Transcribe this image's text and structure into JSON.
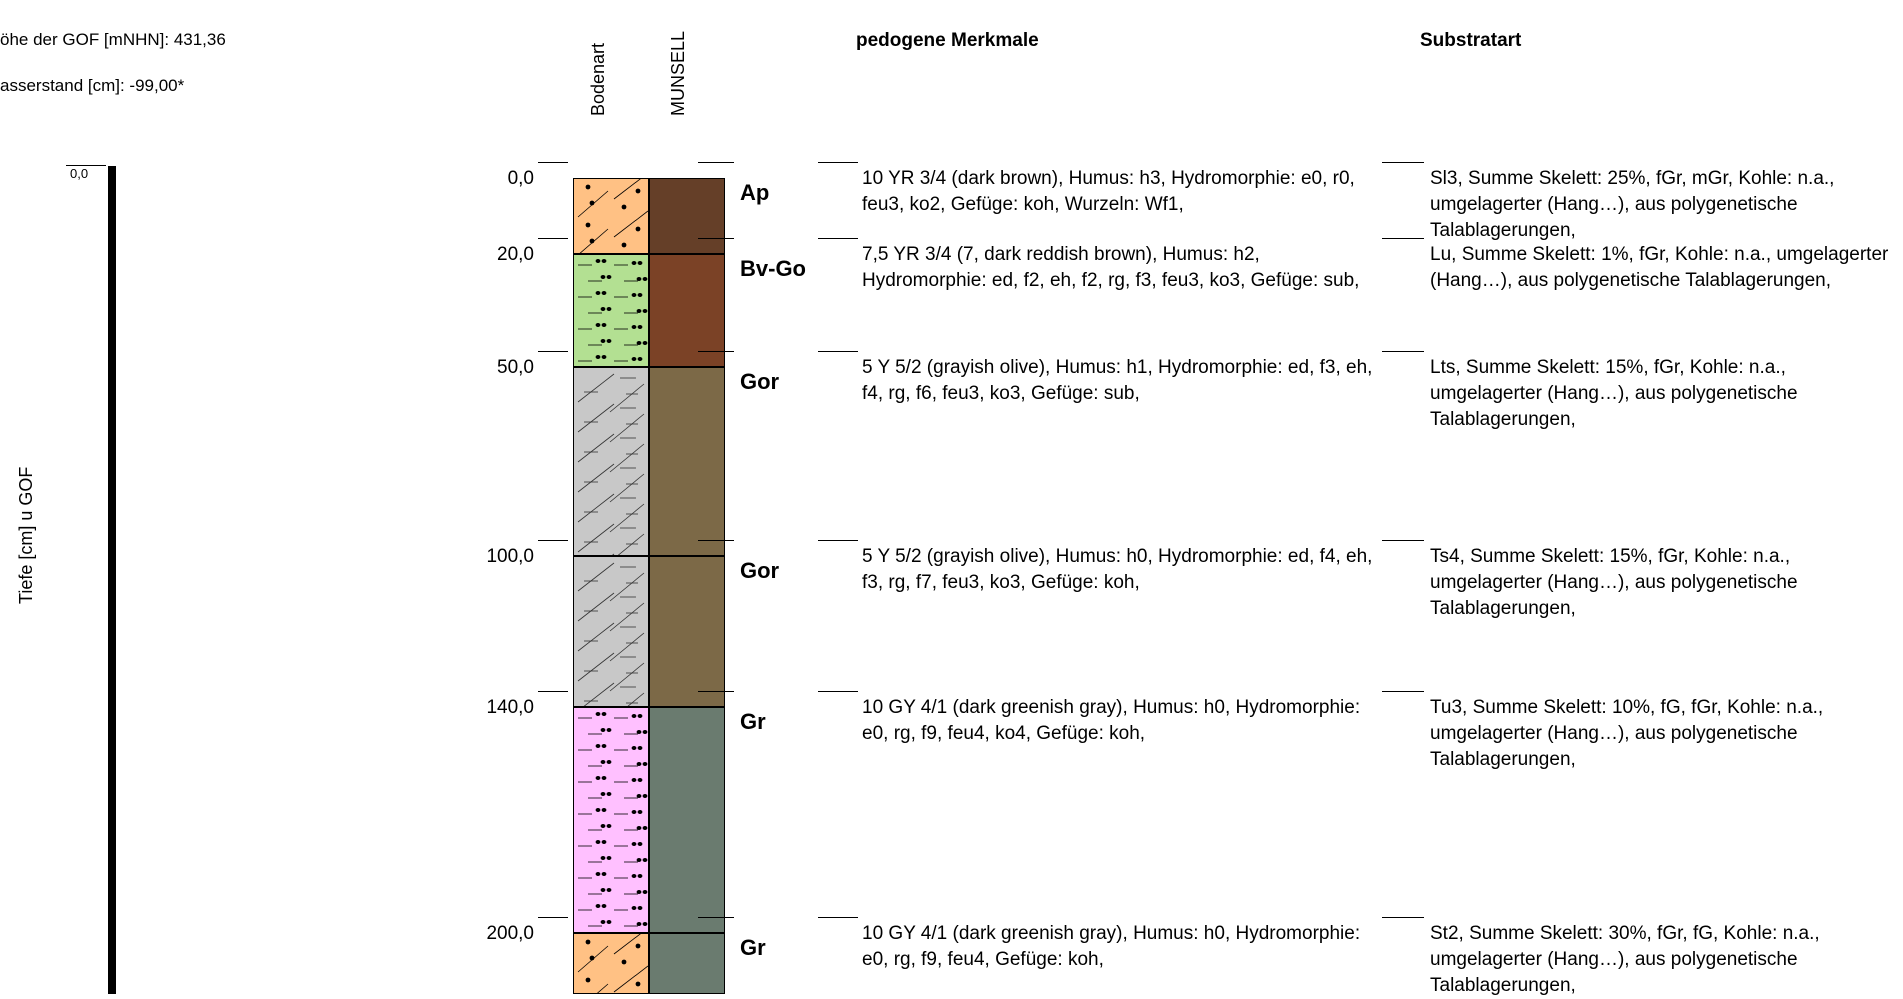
{
  "meta": {
    "gof_height": "öhe der GOF [mNHN]: 431,36",
    "water_level": "asserstand [cm]: -99,00*"
  },
  "axis": {
    "label": "Tiefe [cm] u GOF",
    "zero": "0,0"
  },
  "headers": {
    "bodenart": "Bodenart",
    "munsell": "MUNSELL",
    "pedogene": "pedogene Merkmale",
    "substratart": "Substratart"
  },
  "layers": [
    {
      "depth_label": "0,0",
      "top_cm": 0,
      "bottom_cm": 20,
      "horizon": "Ap",
      "pattern": "sand",
      "soil_color": "#ffc184",
      "munsell_color": "#653f28",
      "pedogenic": "10 YR 3/4 (dark brown), Humus: h3, Hydromorphie: e0, r0, feu3, ko2, Gefüge: koh, Wurzeln: Wf1,",
      "substrate": "Sl3, Summe Skelett: 25%, fGr, mGr, Kohle: n.a., umgelagerter (Hang…), aus polygenetische Talablagerungen,"
    },
    {
      "depth_label": "20,0",
      "top_cm": 20,
      "bottom_cm": 50,
      "horizon": "Bv-Go",
      "pattern": "loam",
      "soil_color": "#b3e092",
      "munsell_color": "#7b4226",
      "pedogenic": "7,5 YR 3/4 (7, dark reddish brown), Humus: h2, Hydromorphie: ed, f2, eh, f2, rg, f3, feu3, ko3, Gefüge: sub,",
      "substrate": "Lu, Summe Skelett: 1%, fGr, Kohle: n.a., umgelagerter (Hang…), aus polygenetische Talablagerungen,"
    },
    {
      "depth_label": "50,0",
      "top_cm": 50,
      "bottom_cm": 100,
      "horizon": "Gor",
      "pattern": "clay",
      "soil_color": "#c8c8c8",
      "munsell_color": "#7c6947",
      "pedogenic": "5 Y 5/2 (grayish olive), Humus: h1, Hydromorphie: ed, f3, eh, f4, rg, f6, feu3, ko3, Gefüge: sub,",
      "substrate": "Lts, Summe Skelett: 15%, fGr, Kohle: n.a., umgelagerter (Hang…), aus polygenetische Talablagerungen,"
    },
    {
      "depth_label": "100,0",
      "top_cm": 100,
      "bottom_cm": 140,
      "horizon": "Gor",
      "pattern": "clay",
      "soil_color": "#c8c8c8",
      "munsell_color": "#7c6947",
      "pedogenic": "5 Y 5/2 (grayish olive), Humus: h0, Hydromorphie: ed, f4, eh, f3, rg, f7, feu3, ko3, Gefüge: koh,",
      "substrate": "Ts4, Summe Skelett: 15%, fGr, Kohle: n.a., umgelagerter (Hang…), aus polygenetische Talablagerungen,"
    },
    {
      "depth_label": "140,0",
      "top_cm": 140,
      "bottom_cm": 200,
      "horizon": "Gr",
      "pattern": "silt",
      "soil_color": "#ffc0ff",
      "munsell_color": "#6a7b6f",
      "pedogenic": "10 GY 4/1 (dark greenish gray), Humus: h0, Hydromorphie: e0, rg, f9, feu4, ko4, Gefüge: koh,",
      "substrate": "Tu3, Summe Skelett: 10%, fG, fGr, Kohle: n.a., umgelagerter (Hang…), aus polygenetische Talablagerungen,"
    },
    {
      "depth_label": "200,0",
      "top_cm": 200,
      "bottom_cm": 220,
      "horizon": "Gr",
      "pattern": "sand",
      "soil_color": "#ffc184",
      "munsell_color": "#6a7b6f",
      "pedogenic": "10 GY 4/1 (dark greenish gray), Humus: h0, Hydromorphie: e0, rg, f9, feu4, Gefüge: koh,",
      "substrate": "St2, Summe Skelett: 30%, fGr, fG, Kohle: n.a., umgelagerter (Hang…), aus polygenetische Talablagerungen,"
    }
  ]
}
